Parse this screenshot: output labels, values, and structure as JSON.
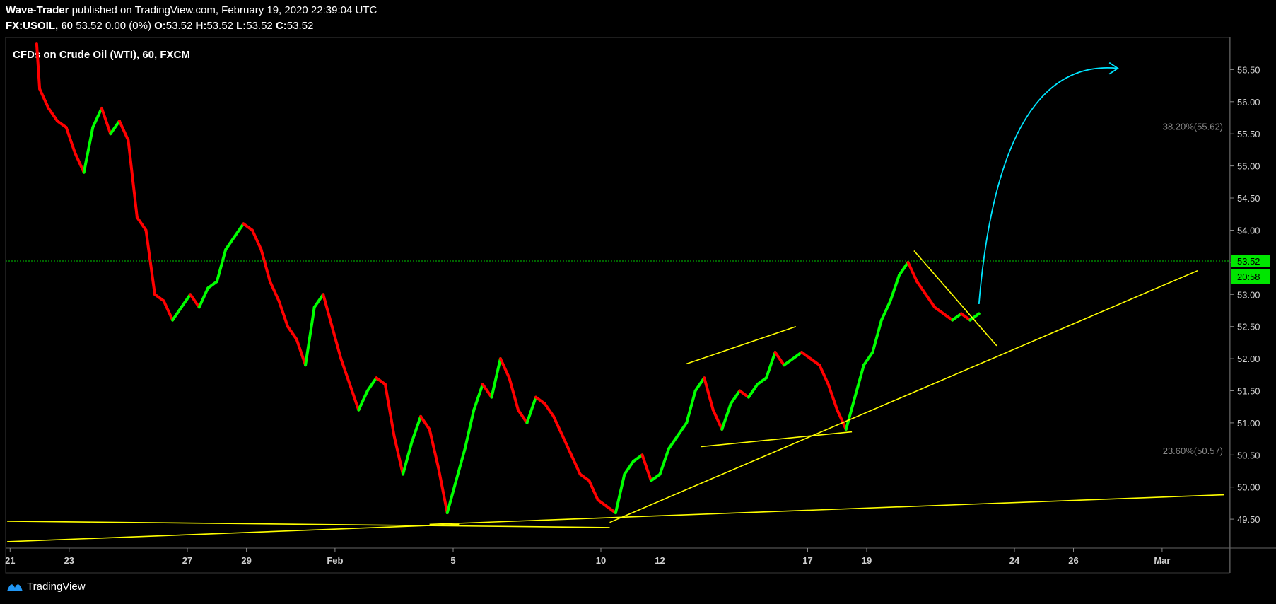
{
  "header": {
    "publisher": "Wave-Trader",
    "published_text": "published on TradingView.com, February 19, 2020 22:39:04 UTC",
    "symbol": "FX:USOIL, 60",
    "price_info": "53.52 0.00 (0%)",
    "o_label": "O:",
    "o_value": "53.52",
    "h_label": "H:",
    "h_value": "53.52",
    "l_label": "L:",
    "l_value": "53.52",
    "c_label": "C:",
    "c_value": "53.52"
  },
  "chart_title": "CFDs on Crude Oil (WTI), 60, FXCM",
  "footer": {
    "brand": "TradingView"
  },
  "colors": {
    "background": "#000000",
    "up": "#00ff00",
    "down": "#ff0000",
    "trendline": "#ffff00",
    "projection": "#00e5ff",
    "fib": "#8a8a8a",
    "price_line": "#00c800",
    "price_badge": "#00e600"
  },
  "chart_data": {
    "type": "candlestick",
    "title": "CFDs on Crude Oil (WTI), 60, FXCM",
    "y_axis": {
      "ticks": [
        "49.50",
        "50.00",
        "50.50",
        "51.00",
        "51.50",
        "52.00",
        "52.50",
        "53.00",
        "53.50",
        "54.00",
        "54.50",
        "55.00",
        "55.50",
        "56.00",
        "56.50"
      ],
      "ylim": [
        49.05,
        57.0
      ]
    },
    "x_axis": {
      "ticks": [
        {
          "label": "21",
          "day": 0
        },
        {
          "label": "23",
          "day": 2
        },
        {
          "label": "27",
          "day": 6
        },
        {
          "label": "29",
          "day": 8
        },
        {
          "label": "Feb",
          "day": 11
        },
        {
          "label": "5",
          "day": 15
        },
        {
          "label": "10",
          "day": 20
        },
        {
          "label": "12",
          "day": 22
        },
        {
          "label": "17",
          "day": 27
        },
        {
          "label": "19",
          "day": 29
        },
        {
          "label": "24",
          "day": 34
        },
        {
          "label": "26",
          "day": 36
        },
        {
          "label": "Mar",
          "day": 39
        }
      ],
      "xlim": [
        -0.15,
        41.3
      ]
    },
    "series_path": [
      [
        0.9,
        56.9
      ],
      [
        1.0,
        56.2
      ],
      [
        1.3,
        55.9
      ],
      [
        1.6,
        55.7
      ],
      [
        1.9,
        55.6
      ],
      [
        2.2,
        55.2
      ],
      [
        2.5,
        54.9
      ],
      [
        2.8,
        55.6
      ],
      [
        3.1,
        55.9
      ],
      [
        3.4,
        55.5
      ],
      [
        3.7,
        55.7
      ],
      [
        4.0,
        55.4
      ],
      [
        4.3,
        54.2
      ],
      [
        4.6,
        54.0
      ],
      [
        4.9,
        53.0
      ],
      [
        5.2,
        52.9
      ],
      [
        5.5,
        52.6
      ],
      [
        5.8,
        52.8
      ],
      [
        6.1,
        53.0
      ],
      [
        6.4,
        52.8
      ],
      [
        6.7,
        53.1
      ],
      [
        7.0,
        53.2
      ],
      [
        7.3,
        53.7
      ],
      [
        7.6,
        53.9
      ],
      [
        7.9,
        54.1
      ],
      [
        8.2,
        54.0
      ],
      [
        8.5,
        53.7
      ],
      [
        8.8,
        53.2
      ],
      [
        9.1,
        52.9
      ],
      [
        9.4,
        52.5
      ],
      [
        9.7,
        52.3
      ],
      [
        10.0,
        51.9
      ],
      [
        10.3,
        52.8
      ],
      [
        10.6,
        53.0
      ],
      [
        10.9,
        52.5
      ],
      [
        11.2,
        52.0
      ],
      [
        11.5,
        51.6
      ],
      [
        11.8,
        51.2
      ],
      [
        12.1,
        51.5
      ],
      [
        12.4,
        51.7
      ],
      [
        12.7,
        51.6
      ],
      [
        13.0,
        50.8
      ],
      [
        13.3,
        50.2
      ],
      [
        13.6,
        50.7
      ],
      [
        13.9,
        51.1
      ],
      [
        14.2,
        50.9
      ],
      [
        14.5,
        50.3
      ],
      [
        14.8,
        49.6
      ],
      [
        15.1,
        50.1
      ],
      [
        15.4,
        50.6
      ],
      [
        15.7,
        51.2
      ],
      [
        16.0,
        51.6
      ],
      [
        16.3,
        51.4
      ],
      [
        16.6,
        52.0
      ],
      [
        16.9,
        51.7
      ],
      [
        17.2,
        51.2
      ],
      [
        17.5,
        51.0
      ],
      [
        17.8,
        51.4
      ],
      [
        18.1,
        51.3
      ],
      [
        18.4,
        51.1
      ],
      [
        18.7,
        50.8
      ],
      [
        19.0,
        50.5
      ],
      [
        19.3,
        50.2
      ],
      [
        19.6,
        50.1
      ],
      [
        19.9,
        49.8
      ],
      [
        20.2,
        49.7
      ],
      [
        20.5,
        49.6
      ],
      [
        20.8,
        50.2
      ],
      [
        21.1,
        50.4
      ],
      [
        21.4,
        50.5
      ],
      [
        21.7,
        50.1
      ],
      [
        22.0,
        50.2
      ],
      [
        22.3,
        50.6
      ],
      [
        22.6,
        50.8
      ],
      [
        22.9,
        51.0
      ],
      [
        23.2,
        51.5
      ],
      [
        23.5,
        51.7
      ],
      [
        23.8,
        51.2
      ],
      [
        24.1,
        50.9
      ],
      [
        24.4,
        51.3
      ],
      [
        24.7,
        51.5
      ],
      [
        25.0,
        51.4
      ],
      [
        25.3,
        51.6
      ],
      [
        25.6,
        51.7
      ],
      [
        25.9,
        52.1
      ],
      [
        26.2,
        51.9
      ],
      [
        26.5,
        52.0
      ],
      [
        26.8,
        52.1
      ],
      [
        27.1,
        52.0
      ],
      [
        27.4,
        51.9
      ],
      [
        27.7,
        51.6
      ],
      [
        28.0,
        51.2
      ],
      [
        28.3,
        50.9
      ],
      [
        28.6,
        51.4
      ],
      [
        28.9,
        51.9
      ],
      [
        29.2,
        52.1
      ],
      [
        29.5,
        52.6
      ],
      [
        29.8,
        52.9
      ],
      [
        30.1,
        53.3
      ],
      [
        30.4,
        53.5
      ],
      [
        30.7,
        53.2
      ],
      [
        31.0,
        53.0
      ],
      [
        31.3,
        52.8
      ],
      [
        31.6,
        52.7
      ],
      [
        31.9,
        52.6
      ],
      [
        32.2,
        52.7
      ],
      [
        32.5,
        52.6
      ],
      [
        32.8,
        52.7
      ]
    ],
    "last_price": 53.52,
    "last_price_label": "53.52",
    "countdown": "20:58",
    "fib_levels": [
      {
        "label": "38.20%(55.62)",
        "value": 55.62
      },
      {
        "label": "23.60%(50.57)",
        "value": 50.57
      }
    ],
    "trendlines": [
      [
        [
          -0.1,
          49.47
        ],
        [
          20.3,
          49.37
        ]
      ],
      [
        [
          -0.1,
          49.15
        ],
        [
          15.2,
          49.42
        ]
      ],
      [
        [
          14.2,
          49.42
        ],
        [
          41.1,
          49.88
        ]
      ],
      [
        [
          20.3,
          49.45
        ],
        [
          40.2,
          53.37
        ]
      ],
      [
        [
          23.4,
          50.63
        ],
        [
          28.5,
          50.86
        ]
      ],
      [
        [
          22.9,
          51.92
        ],
        [
          26.6,
          52.5
        ]
      ],
      [
        [
          30.6,
          53.68
        ],
        [
          33.4,
          52.2
        ]
      ]
    ],
    "projection": {
      "start": [
        32.8,
        52.85
      ],
      "control": [
        33.5,
        56.7
      ],
      "end": [
        37.5,
        56.52
      ]
    }
  }
}
